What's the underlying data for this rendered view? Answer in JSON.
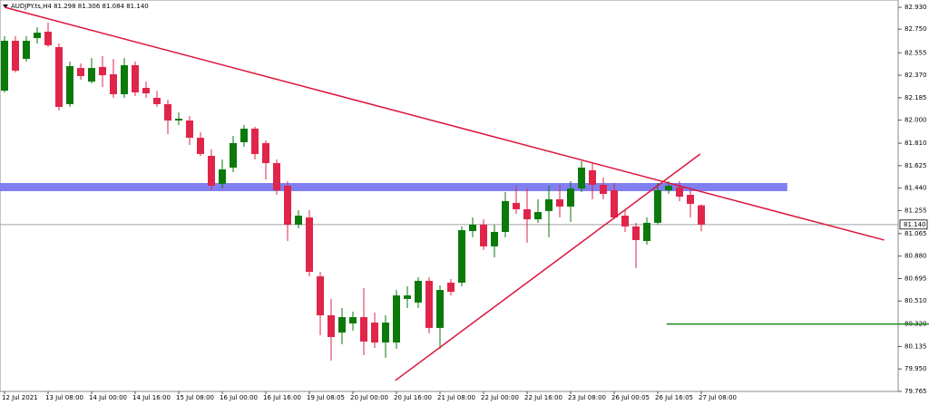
{
  "chart_data": {
    "type": "candlestick",
    "header": "AUDJPY.ts,H4  81.298 81.306 81.084 81.140",
    "categories": [
      "12 Jul 2021",
      null,
      null,
      null,
      "13 Jul 08:00",
      null,
      null,
      null,
      "14 Jul 00:00",
      null,
      null,
      null,
      "14 Jul 16:00",
      null,
      null,
      null,
      "15 Jul 08:00",
      null,
      null,
      null,
      "16 Jul 00:00",
      null,
      null,
      null,
      "16 Jul 16:00",
      null,
      null,
      null,
      "19 Jul 08:05",
      null,
      null,
      null,
      "20 Jul 00:00",
      null,
      null,
      null,
      "20 Jul 16:00",
      null,
      null,
      null,
      "21 Jul 08:00",
      null,
      null,
      null,
      "22 Jul 00:00",
      null,
      null,
      null,
      "22 Jul 16:00",
      null,
      null,
      null,
      "23 Jul 08:00",
      null,
      null,
      null,
      "26 Jul 00:05",
      null,
      null,
      null,
      "26 Jul 16:05",
      null,
      null,
      null,
      "27 Jul 08:00"
    ],
    "open": [
      82.243,
      82.654,
      82.505,
      82.676,
      82.729,
      82.602,
      82.132,
      82.43,
      82.318,
      82.438,
      82.378,
      82.214,
      82.453,
      82.266,
      82.184,
      82.132,
      81.997,
      81.997,
      81.855,
      81.706,
      81.475,
      81.609,
      81.818,
      81.93,
      81.811,
      81.646,
      81.46,
      81.139,
      81.198,
      80.713,
      80.392,
      80.25,
      80.325,
      80.377,
      80.332,
      80.168,
      80.168,
      80.527,
      80.497,
      80.676,
      80.288,
      80.661,
      80.661,
      81.086,
      81.139,
      80.96,
      81.079,
      81.318,
      81.266,
      81.183,
      81.251,
      81.348,
      81.288,
      81.437,
      81.587,
      81.467,
      81.422,
      81.213,
      81.124,
      81.004,
      81.154,
      81.422,
      81.445,
      81.385,
      81.298
    ],
    "high": [
      82.691,
      82.691,
      82.691,
      82.766,
      82.803,
      82.632,
      82.482,
      82.467,
      82.512,
      82.527,
      82.505,
      82.512,
      82.482,
      82.318,
      82.243,
      82.169,
      82.064,
      82.034,
      81.9,
      81.758,
      81.676,
      81.87,
      81.96,
      81.945,
      81.833,
      81.676,
      81.497,
      81.258,
      81.258,
      80.75,
      80.527,
      80.452,
      80.422,
      80.616,
      80.415,
      80.392,
      80.601,
      80.631,
      80.706,
      80.706,
      80.639,
      80.691,
      81.124,
      81.198,
      81.183,
      81.139,
      81.407,
      81.46,
      81.437,
      81.348,
      81.46,
      81.467,
      81.497,
      81.661,
      81.646,
      81.527,
      81.482,
      81.258,
      81.154,
      81.198,
      81.482,
      81.497,
      81.497,
      81.422,
      81.306
    ],
    "low": [
      82.229,
      82.393,
      82.482,
      82.632,
      82.602,
      82.079,
      82.109,
      82.333,
      82.303,
      82.273,
      82.184,
      82.184,
      82.199,
      82.184,
      82.109,
      81.885,
      81.96,
      81.796,
      81.706,
      81.422,
      81.437,
      81.572,
      81.781,
      81.676,
      81.512,
      81.385,
      81.004,
      81.109,
      80.713,
      80.228,
      80.019,
      80.153,
      80.265,
      80.064,
      80.123,
      80.041,
      80.116,
      80.452,
      80.452,
      80.243,
      80.116,
      80.556,
      80.631,
      81.034,
      80.93,
      80.87,
      81.034,
      81.228,
      80.989,
      81.154,
      81.034,
      81.198,
      81.161,
      81.407,
      81.348,
      81.348,
      81.183,
      81.079,
      80.78,
      80.974,
      81.139,
      81.392,
      81.333,
      81.198,
      81.084
    ],
    "close": [
      82.654,
      82.408,
      82.654,
      82.721,
      82.617,
      82.109,
      82.445,
      82.363,
      82.43,
      82.37,
      82.214,
      82.453,
      82.229,
      82.221,
      82.132,
      81.997,
      82.012,
      81.855,
      81.721,
      81.46,
      81.594,
      81.811,
      81.93,
      81.721,
      81.646,
      81.422,
      81.139,
      81.213,
      80.75,
      80.392,
      80.213,
      80.377,
      80.377,
      80.176,
      80.168,
      80.332,
      80.556,
      80.556,
      80.676,
      80.288,
      80.601,
      80.586,
      81.094,
      81.139,
      80.96,
      81.079,
      81.333,
      81.266,
      81.183,
      81.243,
      81.348,
      81.288,
      81.437,
      81.609,
      81.467,
      81.392,
      81.198,
      81.124,
      81.012,
      81.154,
      81.422,
      81.46,
      81.37,
      81.31,
      81.14
    ],
    "up_color": "#0b7a0b",
    "down_color": "#e0254a",
    "ylim": [
      79.765,
      82.99
    ],
    "yticks": [
      {
        "value": 82.93,
        "label": "82.930"
      },
      {
        "value": 82.75,
        "label": "82.750"
      },
      82.555,
      {
        "value": 82.37,
        "label": "82.370"
      },
      82.185,
      {
        "value": 82,
        "label": "82.000"
      },
      {
        "value": 81.81,
        "label": "81.810"
      },
      81.625,
      {
        "value": 81.44,
        "label": "81.440"
      },
      81.255,
      81.065,
      {
        "value": 80.88,
        "label": "80.880"
      },
      80.695,
      {
        "value": 80.51,
        "label": "80.510"
      },
      {
        "value": 80.32,
        "label": "80.320"
      },
      80.135,
      {
        "value": 79.95,
        "label": "79.950"
      },
      79.765
    ],
    "current_price": {
      "value": 81.14,
      "label": "81.140"
    },
    "trendlines": [
      {
        "color": "#dc143c",
        "x": [
          0,
          80.8
        ],
        "y": [
          82.93,
          81.012
        ]
      },
      {
        "color": "#dc143c",
        "x": [
          35.9,
          63.9
        ],
        "y": [
          79.855,
          81.721
        ]
      }
    ],
    "band": {
      "color": "#7f7ff2",
      "x": [
        -0.4,
        71.9
      ],
      "y": [
        81.415,
        81.482
      ]
    },
    "level": {
      "color": "#1d8a1d",
      "x": [
        60.8,
        85
      ],
      "y": 80.32
    }
  }
}
